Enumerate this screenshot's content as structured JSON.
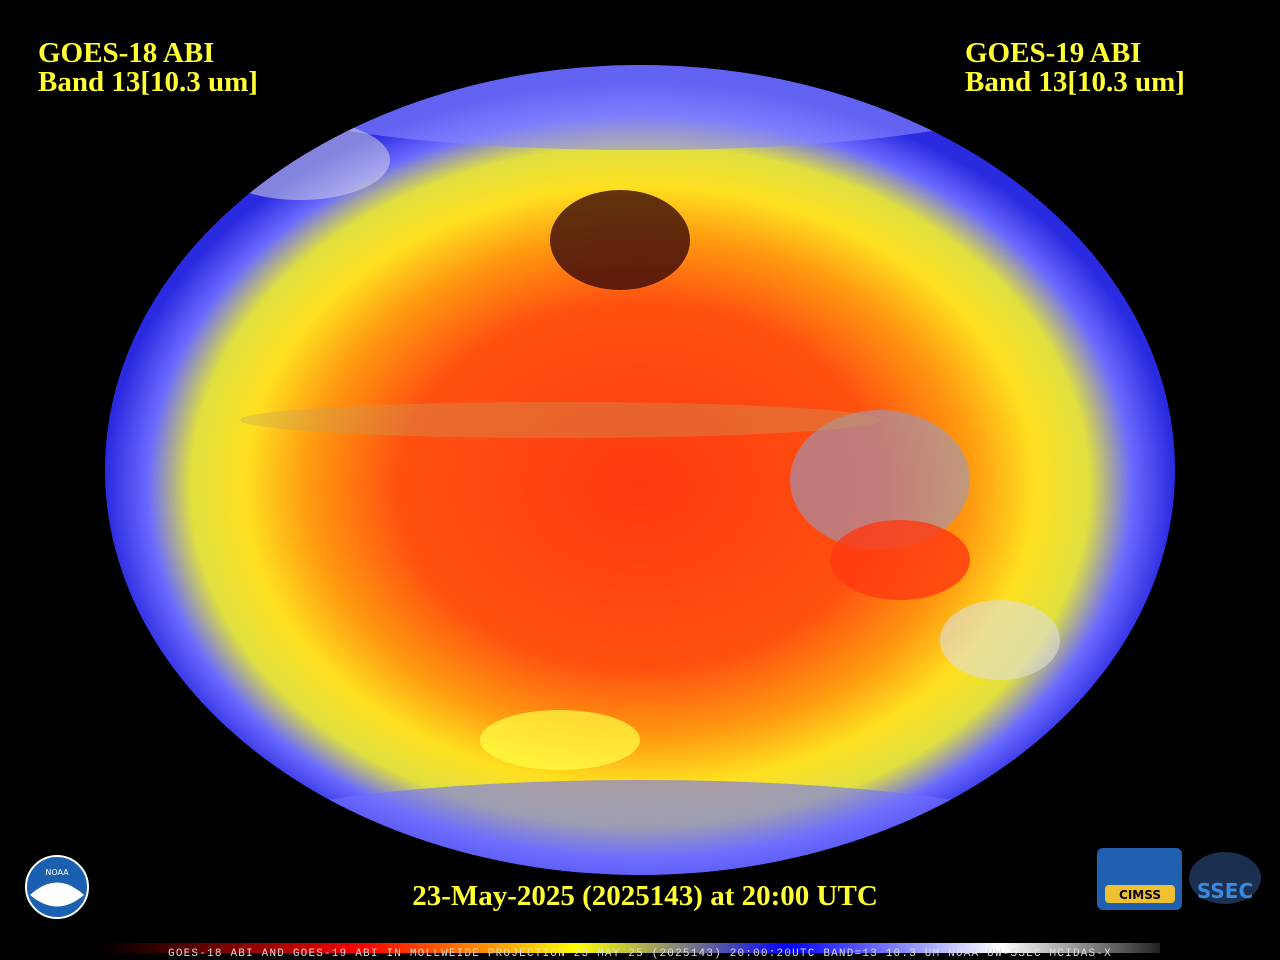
{
  "header": {
    "left": {
      "satellite": "GOES-18 ABI",
      "band": "Band 13[10.3 um]"
    },
    "right": {
      "satellite": "GOES-19 ABI",
      "band": "Band 13[10.3 um]"
    }
  },
  "timestamp": "23-May-2025 (2025143) at 20:00 UTC",
  "logos": {
    "noaa": "NOAA",
    "cimss": "CIMSS",
    "ssec": "SSEC"
  },
  "footer": "GOES-18 ABI AND GOES-19 ABI IN MOLLWEIDE PROJECTION 23 MAY 25 (2025143) 20:00:20UTC BAND=13 10.3 UM NOAA UW-SSEC MCIDAS-X"
}
